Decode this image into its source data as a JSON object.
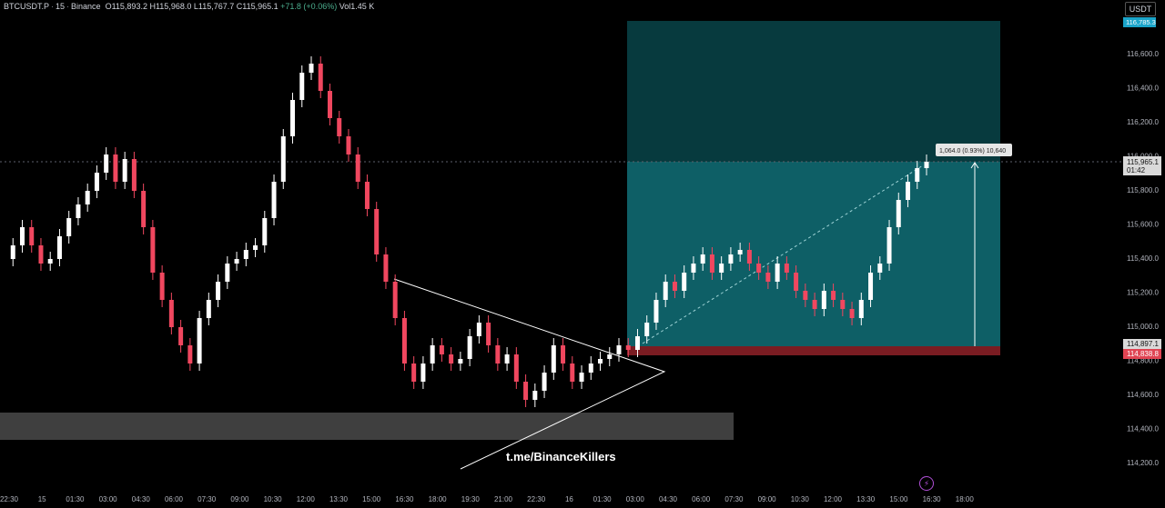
{
  "header": {
    "symbol": "BTCUSDT.P",
    "interval": "15",
    "exchange": "Binance",
    "open": "O115,893.2",
    "high": "H115,968.0",
    "low": "L115,767.7",
    "close": "C115,965.1",
    "change": "+71.8 (+0.06%)",
    "volume": "Vol1.45 K"
  },
  "currency_button": "USDT",
  "watermark": "t.me/BinanceKillers",
  "colors": {
    "background": "#000000",
    "bull": "#ffffff",
    "bear": "#f0475f",
    "target_zone": "#0e5f66",
    "target_zone_upper": "#073a3e",
    "stop_zone": "#7a1c22",
    "support_band": "#4a4a4a"
  },
  "price_axis": {
    "ticks": [
      "116,600.0",
      "116,400.0",
      "116,200.0",
      "116,000.0",
      "115,800.0",
      "115,600.0",
      "115,400.0",
      "115,200.0",
      "115,000.0",
      "114,800.0",
      "114,600.0",
      "114,400.0",
      "114,200.0"
    ],
    "target_label": "116,785.3",
    "current_price": "115,965.1",
    "countdown": "01:42",
    "entry_label": "114,897.1",
    "stop_label": "114,838.8"
  },
  "time_axis": {
    "ticks": [
      "22:30",
      "15",
      "01:30",
      "03:00",
      "04:30",
      "06:00",
      "07:30",
      "09:00",
      "10:30",
      "12:00",
      "13:30",
      "15:00",
      "16:30",
      "18:00",
      "19:30",
      "21:00",
      "22:30",
      "16",
      "01:30",
      "03:00",
      "04:30",
      "06:00",
      "07:30",
      "09:00",
      "10:30",
      "12:00",
      "13:30",
      "15:00",
      "16:30",
      "18:00"
    ]
  },
  "measure_label": "1,064.0 (0.93%) 10,640",
  "chart_data": {
    "type": "candlestick",
    "y_range": [
      114150,
      116850
    ],
    "candles": []
  }
}
